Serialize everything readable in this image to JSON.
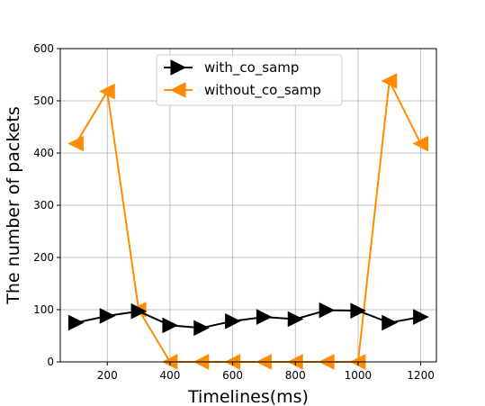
{
  "chart_data": {
    "type": "line",
    "title": "",
    "xlabel": "Timelines(ms)",
    "ylabel": "The number of packets",
    "xlim": [
      50,
      1250
    ],
    "ylim": [
      0,
      600
    ],
    "x_ticks": [
      200,
      400,
      600,
      800,
      1000,
      1200
    ],
    "y_ticks": [
      0,
      100,
      200,
      300,
      400,
      500,
      600
    ],
    "grid": true,
    "legend_position": "upper-center",
    "x": [
      100,
      200,
      300,
      400,
      500,
      600,
      700,
      800,
      900,
      1000,
      1100,
      1200
    ],
    "series": [
      {
        "name": "with_co_samp",
        "color": "#000000",
        "marker": "triangle-right",
        "values": [
          75,
          88,
          97,
          70,
          65,
          78,
          86,
          82,
          99,
          98,
          75,
          86
        ]
      },
      {
        "name": "without_co_samp",
        "color": "#ff8c00",
        "marker": "triangle-left",
        "values": [
          418,
          518,
          100,
          0,
          0,
          0,
          0,
          0,
          0,
          0,
          538,
          418
        ]
      }
    ]
  }
}
